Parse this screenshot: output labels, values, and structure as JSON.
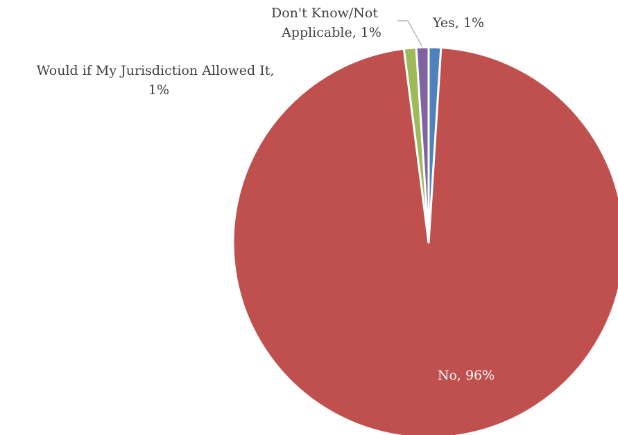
{
  "chart_data": {
    "type": "pie",
    "slices": [
      {
        "label": "Yes",
        "value": 1,
        "display": "1%",
        "color": "#4F81BD"
      },
      {
        "label": "No",
        "value": 96,
        "display": "96%",
        "color": "#C0504D"
      },
      {
        "label": "Would if My Jurisdiction Allowed It",
        "value": 1,
        "display": "1%",
        "color": "#9BBB59"
      },
      {
        "label": "Don't Know/Not Applicable",
        "value": 1,
        "display": "1%",
        "color": "#8064A2"
      }
    ],
    "data_labels": {
      "yes": "Yes, 1%",
      "no": "No, 96%",
      "would_line1": "Would if My Jurisdiction Allowed It,",
      "would_line2": "1%",
      "dontknow_line1": "Don't Know/Not",
      "dontknow_line2": "Applicable, 1%"
    },
    "start_angle_degrees": 0,
    "direction": "clockwise",
    "legend": "none"
  }
}
